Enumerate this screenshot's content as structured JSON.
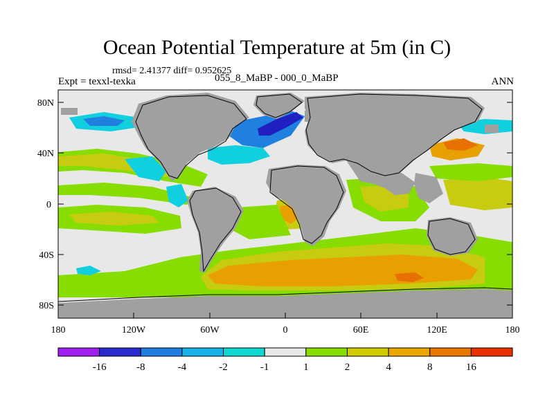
{
  "title": "Ocean Potential Temperature at 5m (in C)",
  "stats": "rmsd= 2.41377 diff= 0.952625",
  "experiment": "Expt = texxl-texka",
  "period": "055_8_MaBP - 000_0_MaBP",
  "season": "ANN",
  "lat_labels": [
    "80N",
    "40N",
    "0",
    "40S",
    "80S"
  ],
  "lon_labels": [
    "180",
    "120W",
    "60W",
    "0",
    "60E",
    "120E",
    "180"
  ],
  "colorbar": {
    "colors": [
      "#a020f0",
      "#2b2bd0",
      "#1f7fe0",
      "#18b0e8",
      "#10d8d0",
      "#e8e8e8",
      "#88dd00",
      "#d0cc00",
      "#e8a800",
      "#e87800",
      "#e83000"
    ],
    "labels": [
      "-16",
      "-8",
      "-4",
      "-2",
      "-1",
      "1",
      "2",
      "4",
      "8",
      "16"
    ]
  },
  "palette": {
    "land": "#a0a0a0",
    "neutral": "#e8e8e8",
    "green": "#88dd00",
    "olive": "#c8cc10",
    "orange": "#e8a000",
    "darkorange": "#e87000",
    "cyan": "#10d0e0",
    "blue": "#2080e0",
    "darkblue": "#2020c0"
  }
}
